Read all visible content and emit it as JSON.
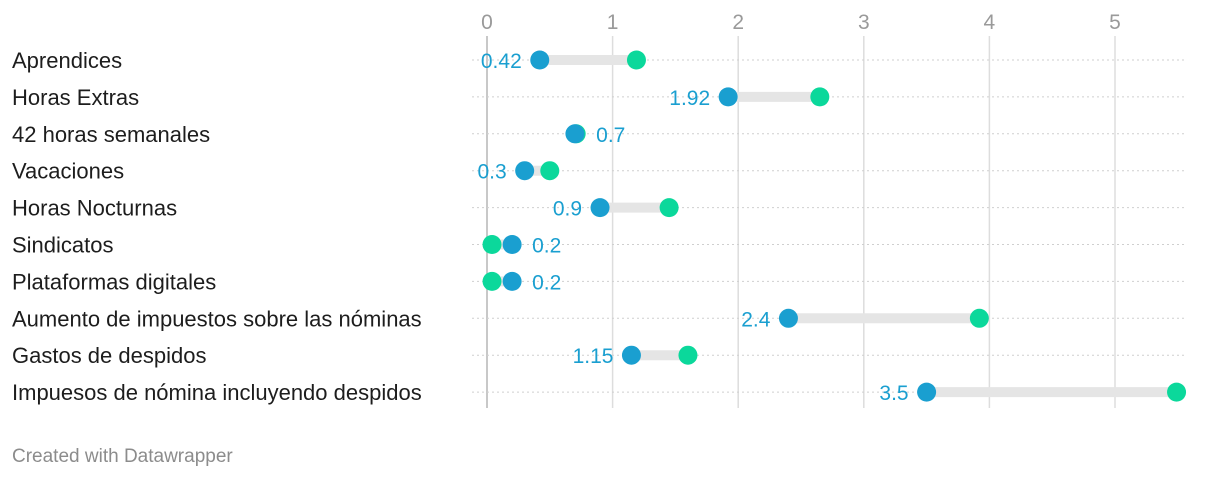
{
  "chart_data": {
    "type": "range-dot",
    "x_ticks": [
      0,
      1,
      2,
      3,
      4,
      5
    ],
    "xlim": [
      0,
      5.5
    ],
    "grid": true,
    "colors": {
      "start": "#1a9fd0",
      "end": "#0bd89b",
      "bar": "#e5e5e5",
      "gridline": "#dddddd"
    },
    "rows": [
      {
        "label": "Aprendices",
        "start": 0.42,
        "end": 1.19,
        "value_label": "0.42"
      },
      {
        "label": "Horas Extras",
        "start": 1.92,
        "end": 2.65,
        "value_label": "1.92"
      },
      {
        "label": "42 horas semanales",
        "start": 0.7,
        "end": 0.71,
        "value_label": "0.7"
      },
      {
        "label": "Vacaciones",
        "start": 0.3,
        "end": 0.5,
        "value_label": "0.3"
      },
      {
        "label": "Horas Nocturnas",
        "start": 0.9,
        "end": 1.45,
        "value_label": "0.9"
      },
      {
        "label": "Sindicatos",
        "start": 0.2,
        "end": 0.04,
        "value_label": "0.2"
      },
      {
        "label": "Plataformas digitales",
        "start": 0.2,
        "end": 0.04,
        "value_label": "0.2"
      },
      {
        "label": "Aumento de impuestos sobre las nóminas",
        "start": 2.4,
        "end": 3.92,
        "value_label": "2.4"
      },
      {
        "label": "Gastos de despidos",
        "start": 1.15,
        "end": 1.6,
        "value_label": "1.15"
      },
      {
        "label": "Impuesos de nómina incluyendo despidos",
        "start": 3.5,
        "end": 5.49,
        "value_label": "3.5"
      }
    ]
  },
  "footer": {
    "credit": "Created with Datawrapper"
  }
}
